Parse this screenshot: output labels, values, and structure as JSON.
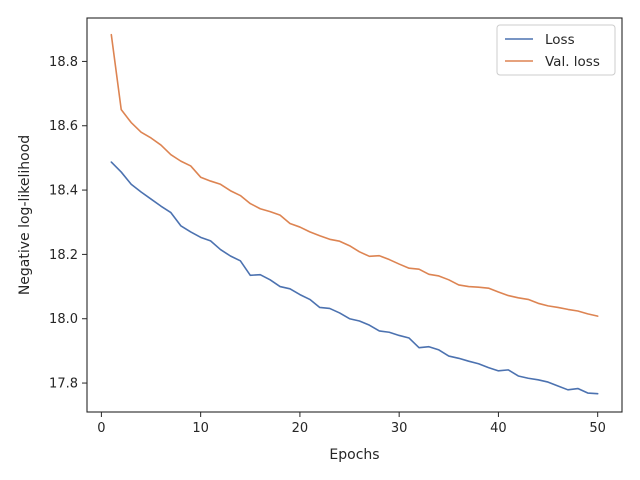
{
  "chart_data": {
    "type": "line",
    "title": "",
    "xlabel": "Epochs",
    "ylabel": "Negative log-likelihood",
    "xlim": [
      -1.45,
      52.45
    ],
    "ylim": [
      17.71,
      18.935
    ],
    "xticks": [
      0,
      10,
      20,
      30,
      40,
      50
    ],
    "xtick_labels": [
      "0",
      "10",
      "20",
      "30",
      "40",
      "50"
    ],
    "yticks": [
      17.8,
      18.0,
      18.2,
      18.4,
      18.6,
      18.8
    ],
    "ytick_labels": [
      "17.8",
      "18.0",
      "18.2",
      "18.4",
      "18.6",
      "18.8"
    ],
    "grid": false,
    "legend_position": "top-right",
    "x": [
      1,
      2,
      3,
      4,
      5,
      6,
      7,
      8,
      9,
      10,
      11,
      12,
      13,
      14,
      15,
      16,
      17,
      18,
      19,
      20,
      21,
      22,
      23,
      24,
      25,
      26,
      27,
      28,
      29,
      30,
      31,
      32,
      33,
      34,
      35,
      36,
      37,
      38,
      39,
      40,
      41,
      42,
      43,
      44,
      45,
      46,
      47,
      48,
      49,
      50
    ],
    "series": [
      {
        "name": "Loss",
        "color": "#4c72b0",
        "values": [
          18.487,
          18.456,
          18.418,
          18.394,
          18.372,
          18.35,
          18.33,
          18.289,
          18.27,
          18.253,
          18.242,
          18.215,
          18.195,
          18.18,
          18.135,
          18.137,
          18.121,
          18.1,
          18.093,
          18.075,
          18.06,
          18.035,
          18.032,
          18.018,
          18.0,
          17.993,
          17.98,
          17.962,
          17.958,
          17.948,
          17.94,
          17.91,
          17.913,
          17.903,
          17.884,
          17.877,
          17.868,
          17.86,
          17.848,
          17.838,
          17.841,
          17.822,
          17.815,
          17.81,
          17.803,
          17.791,
          17.779,
          17.783,
          17.769,
          17.767
        ]
      },
      {
        "name": "Val. loss",
        "color": "#dd8452",
        "values": [
          18.883,
          18.65,
          18.61,
          18.58,
          18.562,
          18.54,
          18.51,
          18.49,
          18.475,
          18.44,
          18.428,
          18.418,
          18.398,
          18.383,
          18.358,
          18.342,
          18.333,
          18.322,
          18.296,
          18.285,
          18.27,
          18.258,
          18.247,
          18.241,
          18.227,
          18.208,
          18.194,
          18.196,
          18.184,
          18.17,
          18.157,
          18.154,
          18.138,
          18.133,
          18.121,
          18.105,
          18.1,
          18.098,
          18.095,
          18.083,
          18.072,
          18.065,
          18.06,
          18.048,
          18.04,
          18.035,
          18.029,
          18.024,
          18.015,
          18.008
        ]
      }
    ]
  }
}
